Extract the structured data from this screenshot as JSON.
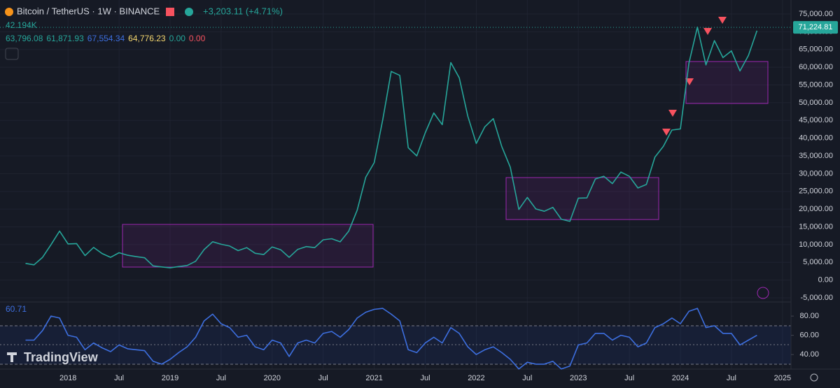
{
  "chart_data": {
    "type": "line",
    "title": "Bitcoin / TetherUS · 1W · BINANCE",
    "change": "+3,203.11 (+4.71%)",
    "volume_label": "42.194K",
    "indicator_values": [
      "63,796.08",
      "61,871.93",
      "67,554.34",
      "64,776.23",
      "0.00",
      "0.00"
    ],
    "last_price": {
      "value": 71224.81,
      "label": "71,224.81"
    },
    "rsi_label": "60.71",
    "brand": "TradingView",
    "grid": true,
    "x": [
      "2017-08",
      "2017-09",
      "2017-10",
      "2017-11",
      "2017-12",
      "2018-01",
      "2018-02",
      "2018-03",
      "2018-04",
      "2018-05",
      "2018-06",
      "2018-07",
      "2018-08",
      "2018-09",
      "2018-10",
      "2018-11",
      "2018-12",
      "2019-01",
      "2019-02",
      "2019-03",
      "2019-04",
      "2019-05",
      "2019-06",
      "2019-07",
      "2019-08",
      "2019-09",
      "2019-10",
      "2019-11",
      "2019-12",
      "2020-01",
      "2020-02",
      "2020-03",
      "2020-04",
      "2020-05",
      "2020-06",
      "2020-07",
      "2020-08",
      "2020-09",
      "2020-10",
      "2020-11",
      "2020-12",
      "2021-01",
      "2021-02",
      "2021-03",
      "2021-04",
      "2021-05",
      "2021-06",
      "2021-07",
      "2021-08",
      "2021-09",
      "2021-10",
      "2021-11",
      "2021-12",
      "2022-01",
      "2022-02",
      "2022-03",
      "2022-04",
      "2022-05",
      "2022-06",
      "2022-07",
      "2022-08",
      "2022-09",
      "2022-10",
      "2022-11",
      "2022-12",
      "2023-01",
      "2023-02",
      "2023-03",
      "2023-04",
      "2023-05",
      "2023-06",
      "2023-07",
      "2023-08",
      "2023-09",
      "2023-10",
      "2023-11",
      "2023-12",
      "2024-01",
      "2024-02",
      "2024-03",
      "2024-04",
      "2024-05",
      "2024-06",
      "2024-07",
      "2024-08",
      "2024-09",
      "2024-10"
    ],
    "xlim": [
      "2017-05",
      "2025-02"
    ],
    "xticks": [
      {
        "value": "2018-01",
        "label": "2018"
      },
      {
        "value": "2018-07",
        "label": "Jul"
      },
      {
        "value": "2019-01",
        "label": "2019"
      },
      {
        "value": "2019-07",
        "label": "Jul"
      },
      {
        "value": "2020-01",
        "label": "2020"
      },
      {
        "value": "2020-07",
        "label": "Jul"
      },
      {
        "value": "2021-01",
        "label": "2021"
      },
      {
        "value": "2021-07",
        "label": "Jul"
      },
      {
        "value": "2022-01",
        "label": "2022"
      },
      {
        "value": "2022-07",
        "label": "Jul"
      },
      {
        "value": "2023-01",
        "label": "2023"
      },
      {
        "value": "2023-07",
        "label": "Jul"
      },
      {
        "value": "2024-01",
        "label": "2024"
      },
      {
        "value": "2024-07",
        "label": "Jul"
      },
      {
        "value": "2025-01",
        "label": "2025"
      }
    ],
    "series": [
      {
        "color": "#26a69a",
        "values": [
          4700,
          4300,
          6400,
          10000,
          13800,
          10200,
          10300,
          6900,
          9200,
          7500,
          6400,
          7700,
          7000,
          6600,
          6300,
          4000,
          3700,
          3450,
          3800,
          4100,
          5300,
          8600,
          10800,
          10100,
          9600,
          8300,
          9150,
          7550,
          7200,
          9350,
          8550,
          6400,
          8650,
          9450,
          9140,
          11350,
          11650,
          10780,
          13800,
          19700,
          29000,
          33100,
          45200,
          58800,
          57700,
          37300,
          35000,
          41500,
          47100,
          43800,
          61300,
          57000,
          46200,
          38500,
          43200,
          45500,
          37600,
          31800,
          19900,
          23300,
          20050,
          19400,
          20500,
          17150,
          16550,
          23100,
          23150,
          28500,
          29250,
          27200,
          30450,
          29250,
          25950,
          26950,
          34650,
          37700,
          42300,
          42600,
          61150,
          71300,
          60650,
          67500,
          62700,
          64600,
          58950,
          63300,
          70300
        ]
      }
    ],
    "ylim": [
      -5000,
      75000
    ],
    "yticks": [
      {
        "value": -5000,
        "label": "-5,000.00"
      },
      {
        "value": 0,
        "label": "0.00"
      },
      {
        "value": 5000,
        "label": "5,000.00"
      },
      {
        "value": 10000,
        "label": "10,000.00"
      },
      {
        "value": 15000,
        "label": "15,000.00"
      },
      {
        "value": 20000,
        "label": "20,000.00"
      },
      {
        "value": 25000,
        "label": "25,000.00"
      },
      {
        "value": 30000,
        "label": "30,000.00"
      },
      {
        "value": 35000,
        "label": "35,000.00"
      },
      {
        "value": 40000,
        "label": "40,000.00"
      },
      {
        "value": 45000,
        "label": "45,000.00"
      },
      {
        "value": 50000,
        "label": "50,000.00"
      },
      {
        "value": 55000,
        "label": "55,000.00"
      },
      {
        "value": 60000,
        "label": "60,000.00"
      },
      {
        "value": 65000,
        "label": "65,000.00"
      },
      {
        "value": 70000,
        "label": "70,000.00"
      },
      {
        "value": 75000,
        "label": "75,000.00"
      }
    ],
    "rsi": {
      "color": "#3d6fe0",
      "values": [
        55,
        55,
        65,
        80,
        78,
        60,
        58,
        45,
        52,
        47,
        43,
        50,
        46,
        45,
        44,
        33,
        30,
        35,
        42,
        48,
        58,
        75,
        82,
        72,
        68,
        58,
        60,
        48,
        45,
        55,
        52,
        38,
        52,
        55,
        52,
        62,
        64,
        58,
        66,
        78,
        84,
        87,
        88,
        82,
        75,
        45,
        42,
        52,
        58,
        52,
        68,
        62,
        48,
        40,
        45,
        48,
        42,
        35,
        25,
        32,
        30,
        30,
        33,
        25,
        28,
        50,
        52,
        62,
        62,
        55,
        60,
        58,
        48,
        52,
        68,
        72,
        78,
        72,
        85,
        88,
        68,
        70,
        62,
        62,
        50,
        55,
        60
      ],
      "ylim": [
        27,
        91
      ],
      "yticks": [
        {
          "value": 40,
          "label": "40.00"
        },
        {
          "value": 60,
          "label": "60.00"
        },
        {
          "value": 80,
          "label": "80.00"
        }
      ]
    }
  }
}
